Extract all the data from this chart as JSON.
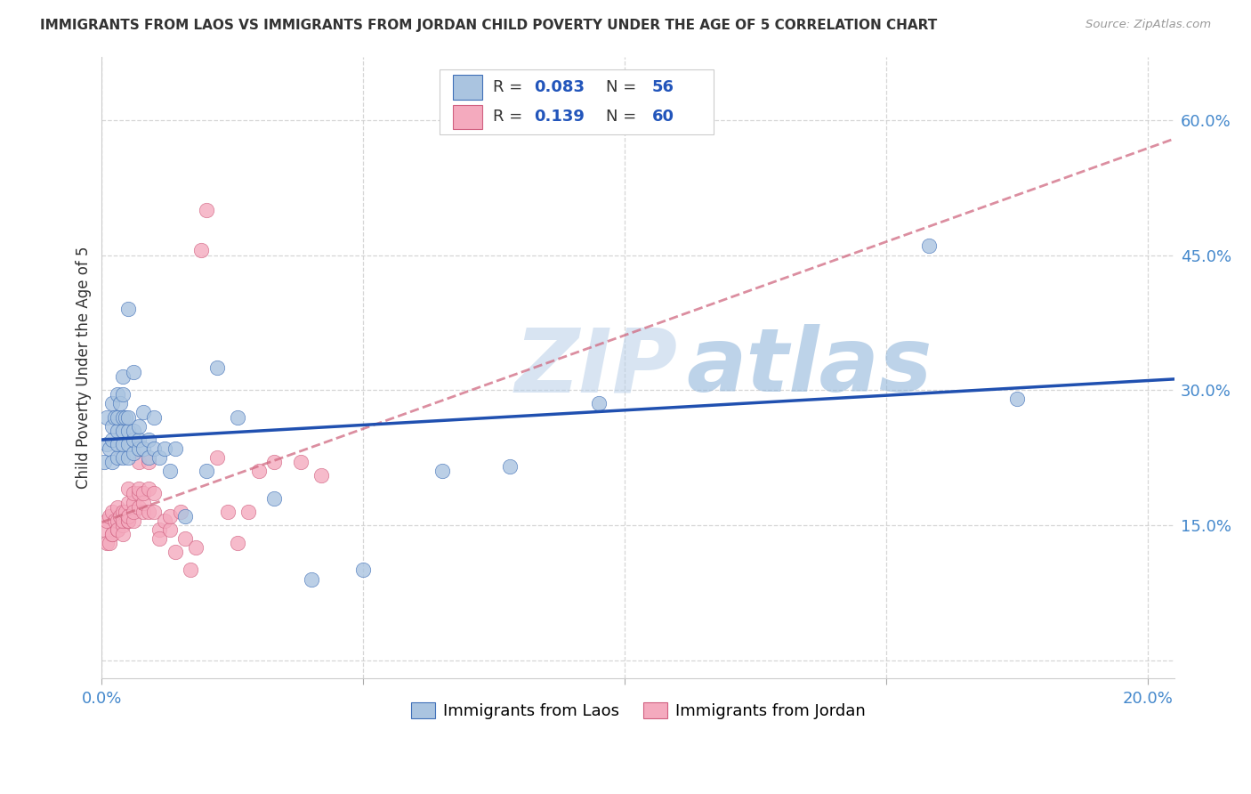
{
  "title": "IMMIGRANTS FROM LAOS VS IMMIGRANTS FROM JORDAN CHILD POVERTY UNDER THE AGE OF 5 CORRELATION CHART",
  "source": "Source: ZipAtlas.com",
  "ylabel": "Child Poverty Under the Age of 5",
  "xlim": [
    0.0,
    0.205
  ],
  "ylim": [
    -0.02,
    0.67
  ],
  "xticks": [
    0.0,
    0.05,
    0.1,
    0.15,
    0.2
  ],
  "yticks": [
    0.0,
    0.15,
    0.3,
    0.45,
    0.6
  ],
  "laos_color": "#aac4e0",
  "jordan_color": "#f4aabe",
  "laos_edge_color": "#4070b8",
  "jordan_edge_color": "#d06080",
  "laos_line_color": "#2050b0",
  "jordan_line_color": "#d06880",
  "watermark_text": "ZIPatlas",
  "laos_x": [
    0.0005,
    0.001,
    0.001,
    0.0015,
    0.002,
    0.002,
    0.002,
    0.002,
    0.0025,
    0.003,
    0.003,
    0.003,
    0.003,
    0.003,
    0.0035,
    0.004,
    0.004,
    0.004,
    0.004,
    0.004,
    0.004,
    0.0045,
    0.005,
    0.005,
    0.005,
    0.005,
    0.005,
    0.006,
    0.006,
    0.006,
    0.006,
    0.007,
    0.007,
    0.007,
    0.008,
    0.008,
    0.009,
    0.009,
    0.01,
    0.01,
    0.011,
    0.012,
    0.013,
    0.014,
    0.016,
    0.02,
    0.022,
    0.026,
    0.033,
    0.04,
    0.05,
    0.065,
    0.078,
    0.095,
    0.158,
    0.175
  ],
  "laos_y": [
    0.22,
    0.24,
    0.27,
    0.235,
    0.22,
    0.245,
    0.26,
    0.285,
    0.27,
    0.225,
    0.24,
    0.255,
    0.27,
    0.295,
    0.285,
    0.225,
    0.24,
    0.255,
    0.27,
    0.295,
    0.315,
    0.27,
    0.225,
    0.24,
    0.255,
    0.27,
    0.39,
    0.23,
    0.245,
    0.255,
    0.32,
    0.235,
    0.245,
    0.26,
    0.235,
    0.275,
    0.225,
    0.245,
    0.235,
    0.27,
    0.225,
    0.235,
    0.21,
    0.235,
    0.16,
    0.21,
    0.325,
    0.27,
    0.18,
    0.09,
    0.1,
    0.21,
    0.215,
    0.285,
    0.46,
    0.29
  ],
  "jordan_x": [
    0.0005,
    0.001,
    0.001,
    0.0015,
    0.0015,
    0.002,
    0.002,
    0.002,
    0.0025,
    0.003,
    0.003,
    0.003,
    0.003,
    0.0035,
    0.004,
    0.004,
    0.004,
    0.004,
    0.0045,
    0.005,
    0.005,
    0.005,
    0.005,
    0.005,
    0.006,
    0.006,
    0.006,
    0.006,
    0.007,
    0.007,
    0.007,
    0.007,
    0.008,
    0.008,
    0.008,
    0.009,
    0.009,
    0.009,
    0.01,
    0.01,
    0.011,
    0.011,
    0.012,
    0.013,
    0.013,
    0.014,
    0.015,
    0.016,
    0.017,
    0.018,
    0.019,
    0.02,
    0.022,
    0.024,
    0.026,
    0.028,
    0.03,
    0.033,
    0.038,
    0.042
  ],
  "jordan_y": [
    0.145,
    0.13,
    0.155,
    0.13,
    0.16,
    0.14,
    0.165,
    0.14,
    0.155,
    0.145,
    0.17,
    0.155,
    0.145,
    0.16,
    0.15,
    0.14,
    0.165,
    0.155,
    0.165,
    0.155,
    0.175,
    0.155,
    0.16,
    0.19,
    0.155,
    0.175,
    0.185,
    0.165,
    0.17,
    0.185,
    0.22,
    0.19,
    0.165,
    0.175,
    0.185,
    0.165,
    0.19,
    0.22,
    0.165,
    0.185,
    0.145,
    0.135,
    0.155,
    0.145,
    0.16,
    0.12,
    0.165,
    0.135,
    0.1,
    0.125,
    0.455,
    0.5,
    0.225,
    0.165,
    0.13,
    0.165,
    0.21,
    0.22,
    0.22,
    0.205
  ]
}
